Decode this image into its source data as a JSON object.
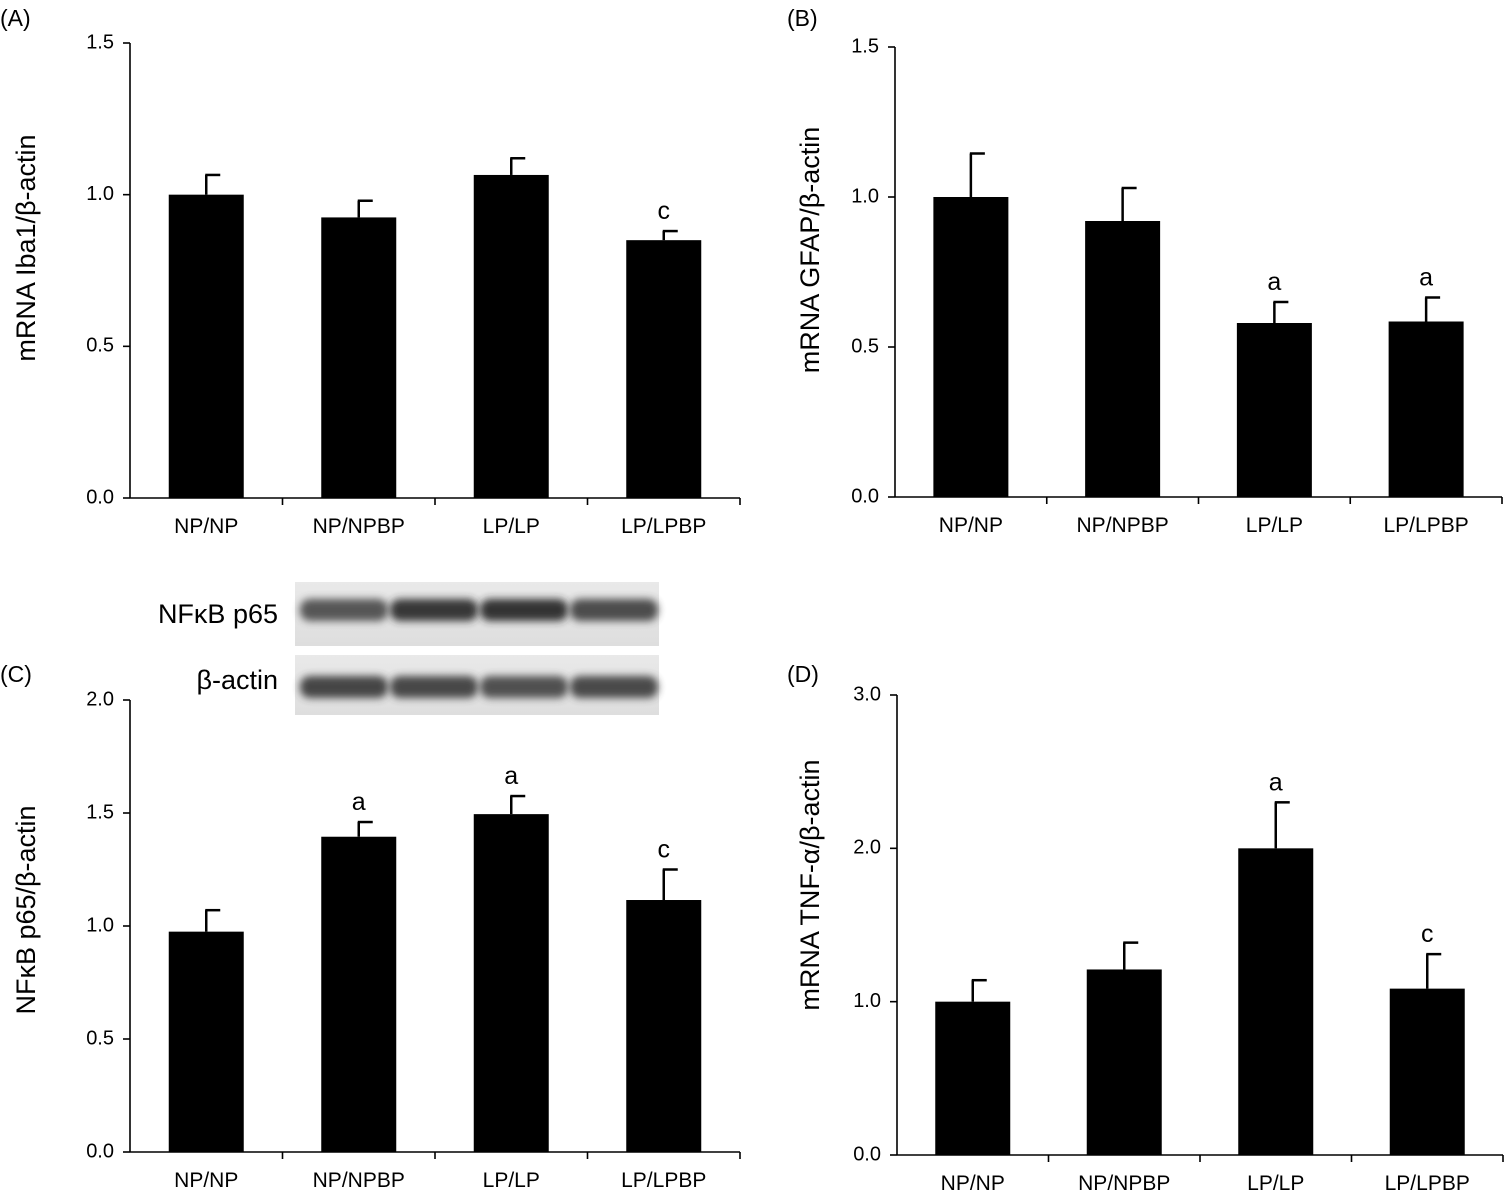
{
  "chart_data": [
    {
      "panel_label": "(A)",
      "type": "bar",
      "categories": [
        "NP/NP",
        "NP/NPBP",
        "LP/LP",
        "LP/LPBP"
      ],
      "values": [
        1.0,
        0.925,
        1.065,
        0.85
      ],
      "errors": [
        0.065,
        0.055,
        0.055,
        0.03
      ],
      "annotations": [
        "",
        "",
        "",
        "c"
      ],
      "ylabel": "mRNA Iba1/β-actin",
      "ylim": [
        0,
        1.5
      ],
      "yticks": [
        "0.0",
        "0.5",
        "1.0",
        "1.5"
      ],
      "color": "#000000"
    },
    {
      "panel_label": "(B)",
      "type": "bar",
      "categories": [
        "NP/NP",
        "NP/NPBP",
        "LP/LP",
        "LP/LPBP"
      ],
      "values": [
        1.0,
        0.92,
        0.58,
        0.585
      ],
      "errors": [
        0.145,
        0.11,
        0.07,
        0.08
      ],
      "annotations": [
        "",
        "",
        "a",
        "a"
      ],
      "ylabel": "mRNA GFAP/β-actin",
      "ylim": [
        0,
        1.5
      ],
      "yticks": [
        "0.0",
        "0.5",
        "1.0",
        "1.5"
      ],
      "color": "#000000"
    },
    {
      "panel_label": "(C)",
      "type": "bar",
      "categories": [
        "NP/NP",
        "NP/NPBP",
        "LP/LP",
        "LP/LPBP"
      ],
      "values": [
        0.975,
        1.395,
        1.495,
        1.115
      ],
      "errors": [
        0.095,
        0.065,
        0.08,
        0.135
      ],
      "annotations": [
        "",
        "a",
        "a",
        "c"
      ],
      "ylabel": "NFκB p65/β-actin",
      "ylim": [
        0,
        2
      ],
      "yticks": [
        "0.0",
        "0.5",
        "1.0",
        "1.5",
        "2.0"
      ],
      "color": "#000000",
      "blot": {
        "labels": [
          "NFκB p65",
          "β-actin"
        ]
      }
    },
    {
      "panel_label": "(D)",
      "type": "bar",
      "categories": [
        "NP/NP",
        "NP/NPBP",
        "LP/LP",
        "LP/LPBP"
      ],
      "values": [
        1.0,
        1.21,
        2.0,
        1.085
      ],
      "errors": [
        0.14,
        0.175,
        0.3,
        0.225
      ],
      "annotations": [
        "",
        "",
        "a",
        "c"
      ],
      "ylabel": "mRNA TNF-α/β-actin",
      "ylim": [
        0,
        3
      ],
      "yticks": [
        "0.0",
        "1.0",
        "2.0",
        "3.0"
      ],
      "color": "#000000"
    }
  ]
}
